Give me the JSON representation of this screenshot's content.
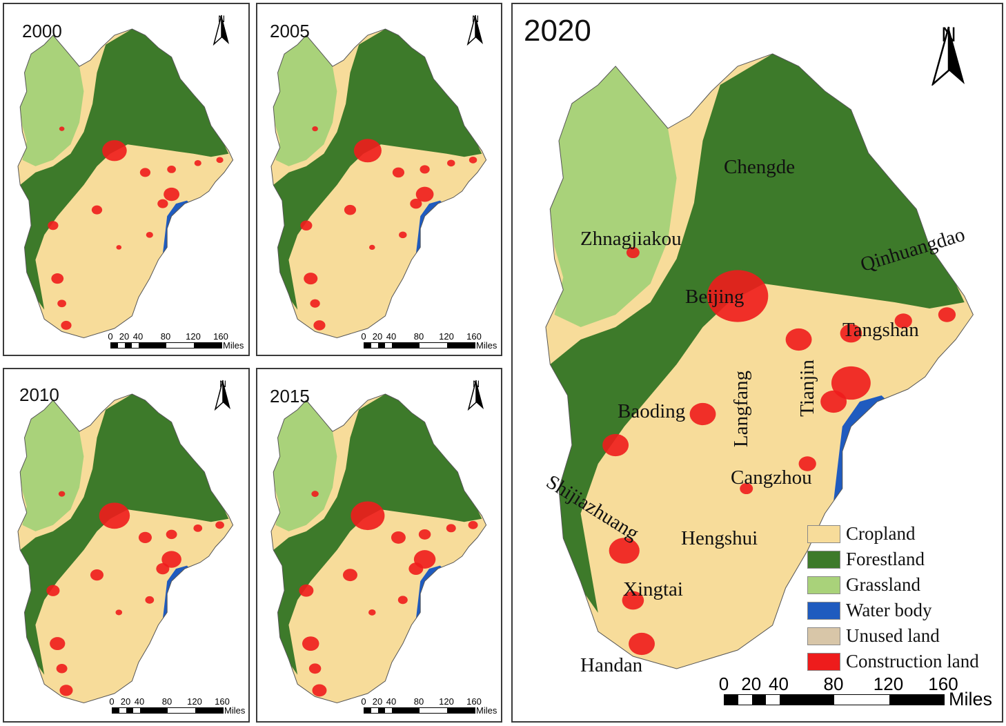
{
  "panels": [
    {
      "year": "2000"
    },
    {
      "year": "2005"
    },
    {
      "year": "2010"
    },
    {
      "year": "2015"
    },
    {
      "year": "2020"
    }
  ],
  "north_label": "N",
  "scale_bar": {
    "ticks": [
      "0",
      "20",
      "40",
      "80",
      "120",
      "160"
    ],
    "unit": "Miles"
  },
  "cities": {
    "chengde": "Chengde",
    "zhangjiakou": "Zhnagjiakou",
    "qinhuangdao": "Qinhuangdao",
    "beijing": "Beijing",
    "tangshan": "Tangshan",
    "langfang": "Langfang",
    "tianjin": "Tianjin",
    "baoding": "Baoding",
    "cangzhou": "Cangzhou",
    "shijiazhuang": "Shijiazhuang",
    "hengshui": "Hengshui",
    "xingtai": "Xingtai",
    "handan": "Handan"
  },
  "legend": [
    {
      "label": "Cropland",
      "color": "#f7dc9a"
    },
    {
      "label": "Forestland",
      "color": "#3d7a2a"
    },
    {
      "label": "Grassland",
      "color": "#a9d27a"
    },
    {
      "label": "Water body",
      "color": "#1f5bbf"
    },
    {
      "label": "Unused land",
      "color": "#d8c6a8"
    },
    {
      "label": "Construction land",
      "color": "#ee1c1c"
    }
  ]
}
